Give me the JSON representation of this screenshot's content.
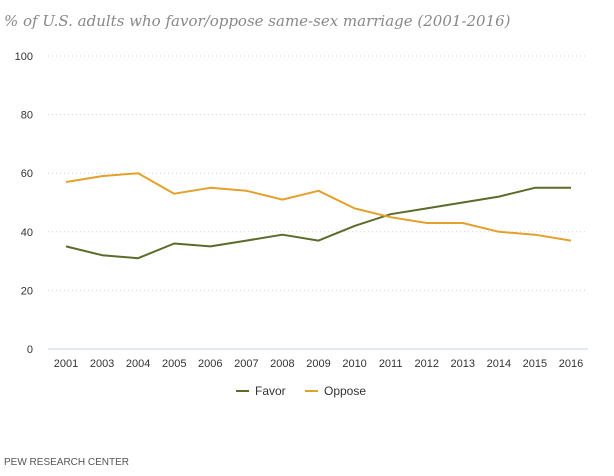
{
  "chart_data": {
    "type": "line",
    "title": "% of U.S. adults who favor/oppose same-sex marriage (2001-2016)",
    "categories": [
      "2001",
      "2003",
      "2004",
      "2005",
      "2006",
      "2007",
      "2008",
      "2009",
      "2010",
      "2011",
      "2012",
      "2013",
      "2014",
      "2015",
      "2016"
    ],
    "series": [
      {
        "name": "Favor",
        "color": "#5a6b2a",
        "values": [
          35,
          32,
          31,
          36,
          35,
          37,
          39,
          37,
          42,
          46,
          48,
          50,
          52,
          55,
          55
        ]
      },
      {
        "name": "Oppose",
        "color": "#e3a12b",
        "values": [
          57,
          59,
          60,
          53,
          55,
          54,
          51,
          54,
          48,
          45,
          43,
          43,
          40,
          39,
          37
        ]
      }
    ],
    "yticks": [
      0,
      20,
      40,
      60,
      80,
      100
    ],
    "ylim": [
      0,
      100
    ],
    "grid": true,
    "legend": "bottom-center"
  },
  "source": "PEW RESEARCH CENTER"
}
